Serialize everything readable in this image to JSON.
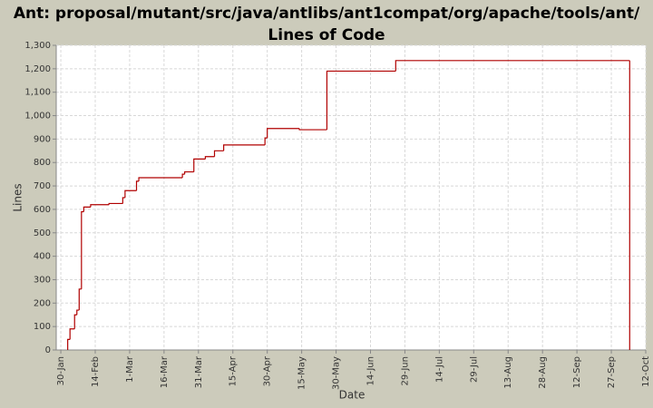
{
  "chart_data": {
    "type": "step-line",
    "title": "Ant: proposal/mutant/src/java/antlibs/ant1compat/org/apache/tools/ant/ Lines of Code",
    "x_label": "Date",
    "y_label": "Lines",
    "color": "#b00000",
    "grid": true,
    "x": [
      "2-Feb",
      "3-Feb",
      "5-Feb",
      "6-Feb",
      "7-Feb",
      "8-Feb",
      "9-Feb",
      "12-Feb",
      "20-Feb",
      "26-Feb",
      "27-Feb",
      "4-Mar",
      "5-Mar",
      "24-Mar",
      "25-Mar",
      "29-Mar",
      "3-Apr",
      "7-Apr",
      "11-Apr",
      "29-Apr",
      "30-Apr",
      "14-May",
      "26-May",
      "25-Jun",
      "5-Oct"
    ],
    "values": [
      45,
      90,
      150,
      170,
      260,
      590,
      610,
      620,
      625,
      650,
      680,
      720,
      735,
      750,
      760,
      815,
      825,
      850,
      875,
      905,
      945,
      940,
      1190,
      1235,
      0
    ],
    "xlim": [
      "28-Jan",
      "12-Oct"
    ],
    "xticks": [
      "30-Jan",
      "14-Feb",
      "1-Mar",
      "16-Mar",
      "31-Mar",
      "15-Apr",
      "30-Apr",
      "15-May",
      "30-May",
      "14-Jun",
      "29-Jun",
      "14-Jul",
      "29-Jul",
      "13-Aug",
      "28-Aug",
      "12-Sep",
      "27-Sep",
      "12-Oct"
    ],
    "ylim": [
      0,
      1300
    ],
    "yticks": [
      0,
      100,
      200,
      300,
      400,
      500,
      600,
      700,
      800,
      900,
      {
        "value": 1000,
        "label": "1,000"
      },
      {
        "value": 1100,
        "label": "1,100"
      },
      {
        "value": 1200,
        "label": "1,200"
      },
      {
        "value": 1300,
        "label": "1,300"
      }
    ]
  }
}
